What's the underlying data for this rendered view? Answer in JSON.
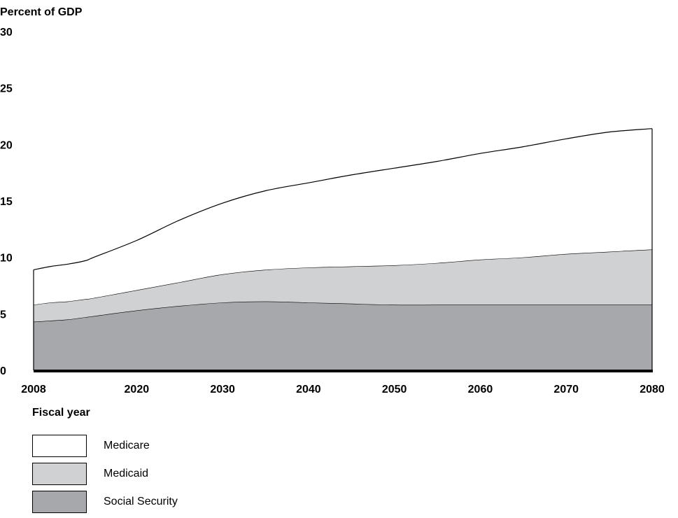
{
  "chart_data": {
    "type": "area",
    "stacked": true,
    "ylabel": "Percent of GDP",
    "xlabel": "Fiscal year",
    "ylim": [
      0,
      30
    ],
    "xlim": [
      2008,
      2080
    ],
    "yticks": [
      0,
      5,
      10,
      15,
      20,
      25,
      30
    ],
    "xticks": [
      2008,
      2020,
      2030,
      2040,
      2050,
      2060,
      2070,
      2080
    ],
    "grid": false,
    "legend_position": "bottom-left",
    "x": [
      2008,
      2010,
      2012,
      2014,
      2015,
      2020,
      2025,
      2030,
      2035,
      2040,
      2045,
      2050,
      2055,
      2060,
      2065,
      2070,
      2075,
      2080
    ],
    "series": [
      {
        "name": "Social Security",
        "color": "#a7a8ac",
        "values": [
          4.3,
          4.4,
          4.5,
          4.7,
          4.8,
          5.3,
          5.7,
          6.0,
          6.1,
          6.0,
          5.9,
          5.8,
          5.8,
          5.8,
          5.8,
          5.8,
          5.8,
          5.8
        ]
      },
      {
        "name": "Medicaid",
        "color": "#d0d1d3",
        "values": [
          1.5,
          1.6,
          1.6,
          1.6,
          1.6,
          1.8,
          2.1,
          2.5,
          2.8,
          3.1,
          3.3,
          3.5,
          3.7,
          4.0,
          4.2,
          4.5,
          4.7,
          4.9
        ]
      },
      {
        "name": "Medicare",
        "color": "#ffffff",
        "values": [
          3.1,
          3.2,
          3.3,
          3.4,
          3.6,
          4.4,
          5.5,
          6.3,
          7.0,
          7.5,
          8.1,
          8.6,
          9.0,
          9.4,
          9.8,
          10.2,
          10.6,
          10.7
        ]
      }
    ]
  }
}
